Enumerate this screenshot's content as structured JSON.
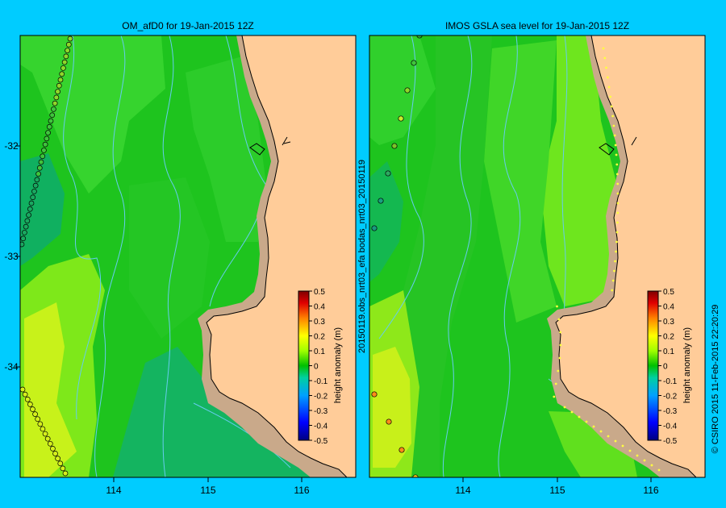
{
  "colors": {
    "background": "#00ccff",
    "land": "#ffcc99",
    "shelf": "#c9a98a",
    "contour": "#66ccee"
  },
  "chart_data": [
    {
      "type": "heatmap",
      "title": "OM_afD0 for 19-Jan-2015 12Z",
      "xticks": [
        "114",
        "115",
        "116"
      ],
      "yticks": [
        "-32",
        "-33",
        "-34"
      ],
      "xlim": [
        113.0,
        116.6
      ],
      "ylim": [
        -35.0,
        -31.0
      ],
      "colorbar": {
        "label": "height anomaly (m)",
        "ticks": [
          "0.5",
          "0.4",
          "0.3",
          "0.2",
          "0.1",
          "0",
          "-0.1",
          "-0.2",
          "-0.3",
          "-0.4",
          "-0.5"
        ],
        "range": [
          -0.5,
          0.5
        ]
      },
      "regions": [
        {
          "name": "northwest",
          "value": -0.05
        },
        {
          "name": "west-central",
          "value": -0.12
        },
        {
          "name": "southwest",
          "value": 0.12
        },
        {
          "name": "south",
          "value": -0.12
        },
        {
          "name": "central",
          "value": -0.05
        }
      ]
    },
    {
      "type": "heatmap",
      "title": "IMOS GSLA sea level  for 19-Jan-2015 12Z",
      "xticks": [
        "114",
        "115",
        "116"
      ],
      "xlim": [
        113.0,
        116.6
      ],
      "ylim": [
        -35.0,
        -31.0
      ],
      "colorbar": {
        "label": "height anomaly (m)",
        "ticks": [
          "0.5",
          "0.4",
          "0.3",
          "0.2",
          "0.1",
          "0",
          "-0.1",
          "-0.2",
          "-0.3",
          "-0.4",
          "-0.5"
        ],
        "range": [
          -0.5,
          0.5
        ]
      },
      "regions": [
        {
          "name": "west",
          "value": -0.08
        },
        {
          "name": "southwest",
          "value": 0.12
        },
        {
          "name": "coastal",
          "value": 0.05
        },
        {
          "name": "south",
          "value": 0.08
        }
      ]
    }
  ],
  "side_label": "20150119.obs_nrt03_efa    bodas_nrt03_20150119",
  "copyright": "© CSIRO 2015   11-Feb-2015 22:20:29"
}
